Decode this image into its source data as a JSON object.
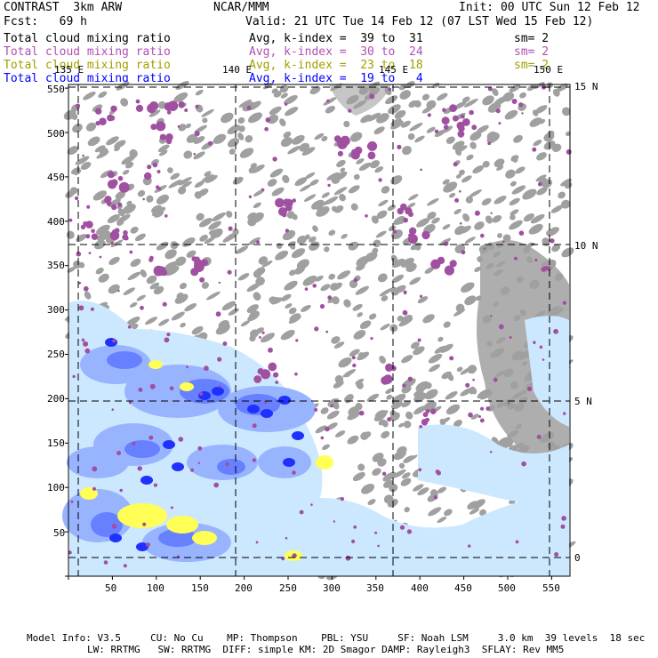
{
  "header": {
    "title": "CONTRAST  3km ARW",
    "org": "NCAR/MMM",
    "init": "Init: 00 UTC Sun 12 Feb 12",
    "fcst": "Fcst:   69 h",
    "valid": "Valid: 21 UTC Tue 14 Feb 12 (07 LST Wed 15 Feb 12)"
  },
  "fields": [
    {
      "name": "Total cloud mixing ratio",
      "avg": "Avg, k-index =  39 to  31",
      "sm": "sm= 2",
      "color": "#000000"
    },
    {
      "name": "Total cloud mixing ratio",
      "avg": "Avg, k-index =  30 to  24",
      "sm": "sm= 2",
      "color": "#b050b0"
    },
    {
      "name": "Total cloud mixing ratio",
      "avg": "Avg, k-index =  23 to  18",
      "sm": "sm= 2",
      "color": "#a0a000"
    },
    {
      "name": "Total cloud mixing ratio",
      "avg": "Avg, k-index =  19 to   4",
      "sm": "",
      "color": "#0000ff"
    }
  ],
  "map": {
    "lon_labels": [
      "135 E",
      "140 E",
      "145 E",
      "150 E"
    ],
    "lat_labels": [
      "15 N",
      "10 N",
      "5 N",
      "0"
    ],
    "x_ticks": [
      "50",
      "100",
      "150",
      "200",
      "250",
      "300",
      "350",
      "400",
      "450",
      "500",
      "550"
    ],
    "y_ticks": [
      "550",
      "500",
      "450",
      "400",
      "350",
      "300",
      "250",
      "200",
      "150",
      "100",
      "50"
    ],
    "colors": {
      "gray": "#a0a0a0",
      "purple": "#a050a0",
      "light_blue": "#cce8ff",
      "mid_blue": "#99b4ff",
      "blue": "#6680ff",
      "dark_blue": "#2030ff",
      "yellow": "#ffff55"
    }
  },
  "footer": {
    "line1": "Model Info: V3.5     CU: No Cu    MP: Thompson    PBL: YSU     SF: Noah LSM     3.0 km  39 levels  18 sec",
    "line2": "LW: RRTMG   SW: RRTMG  DIFF: simple KM: 2D Smagor DAMP: Rayleigh3  SFLAY: Rev MM5"
  }
}
